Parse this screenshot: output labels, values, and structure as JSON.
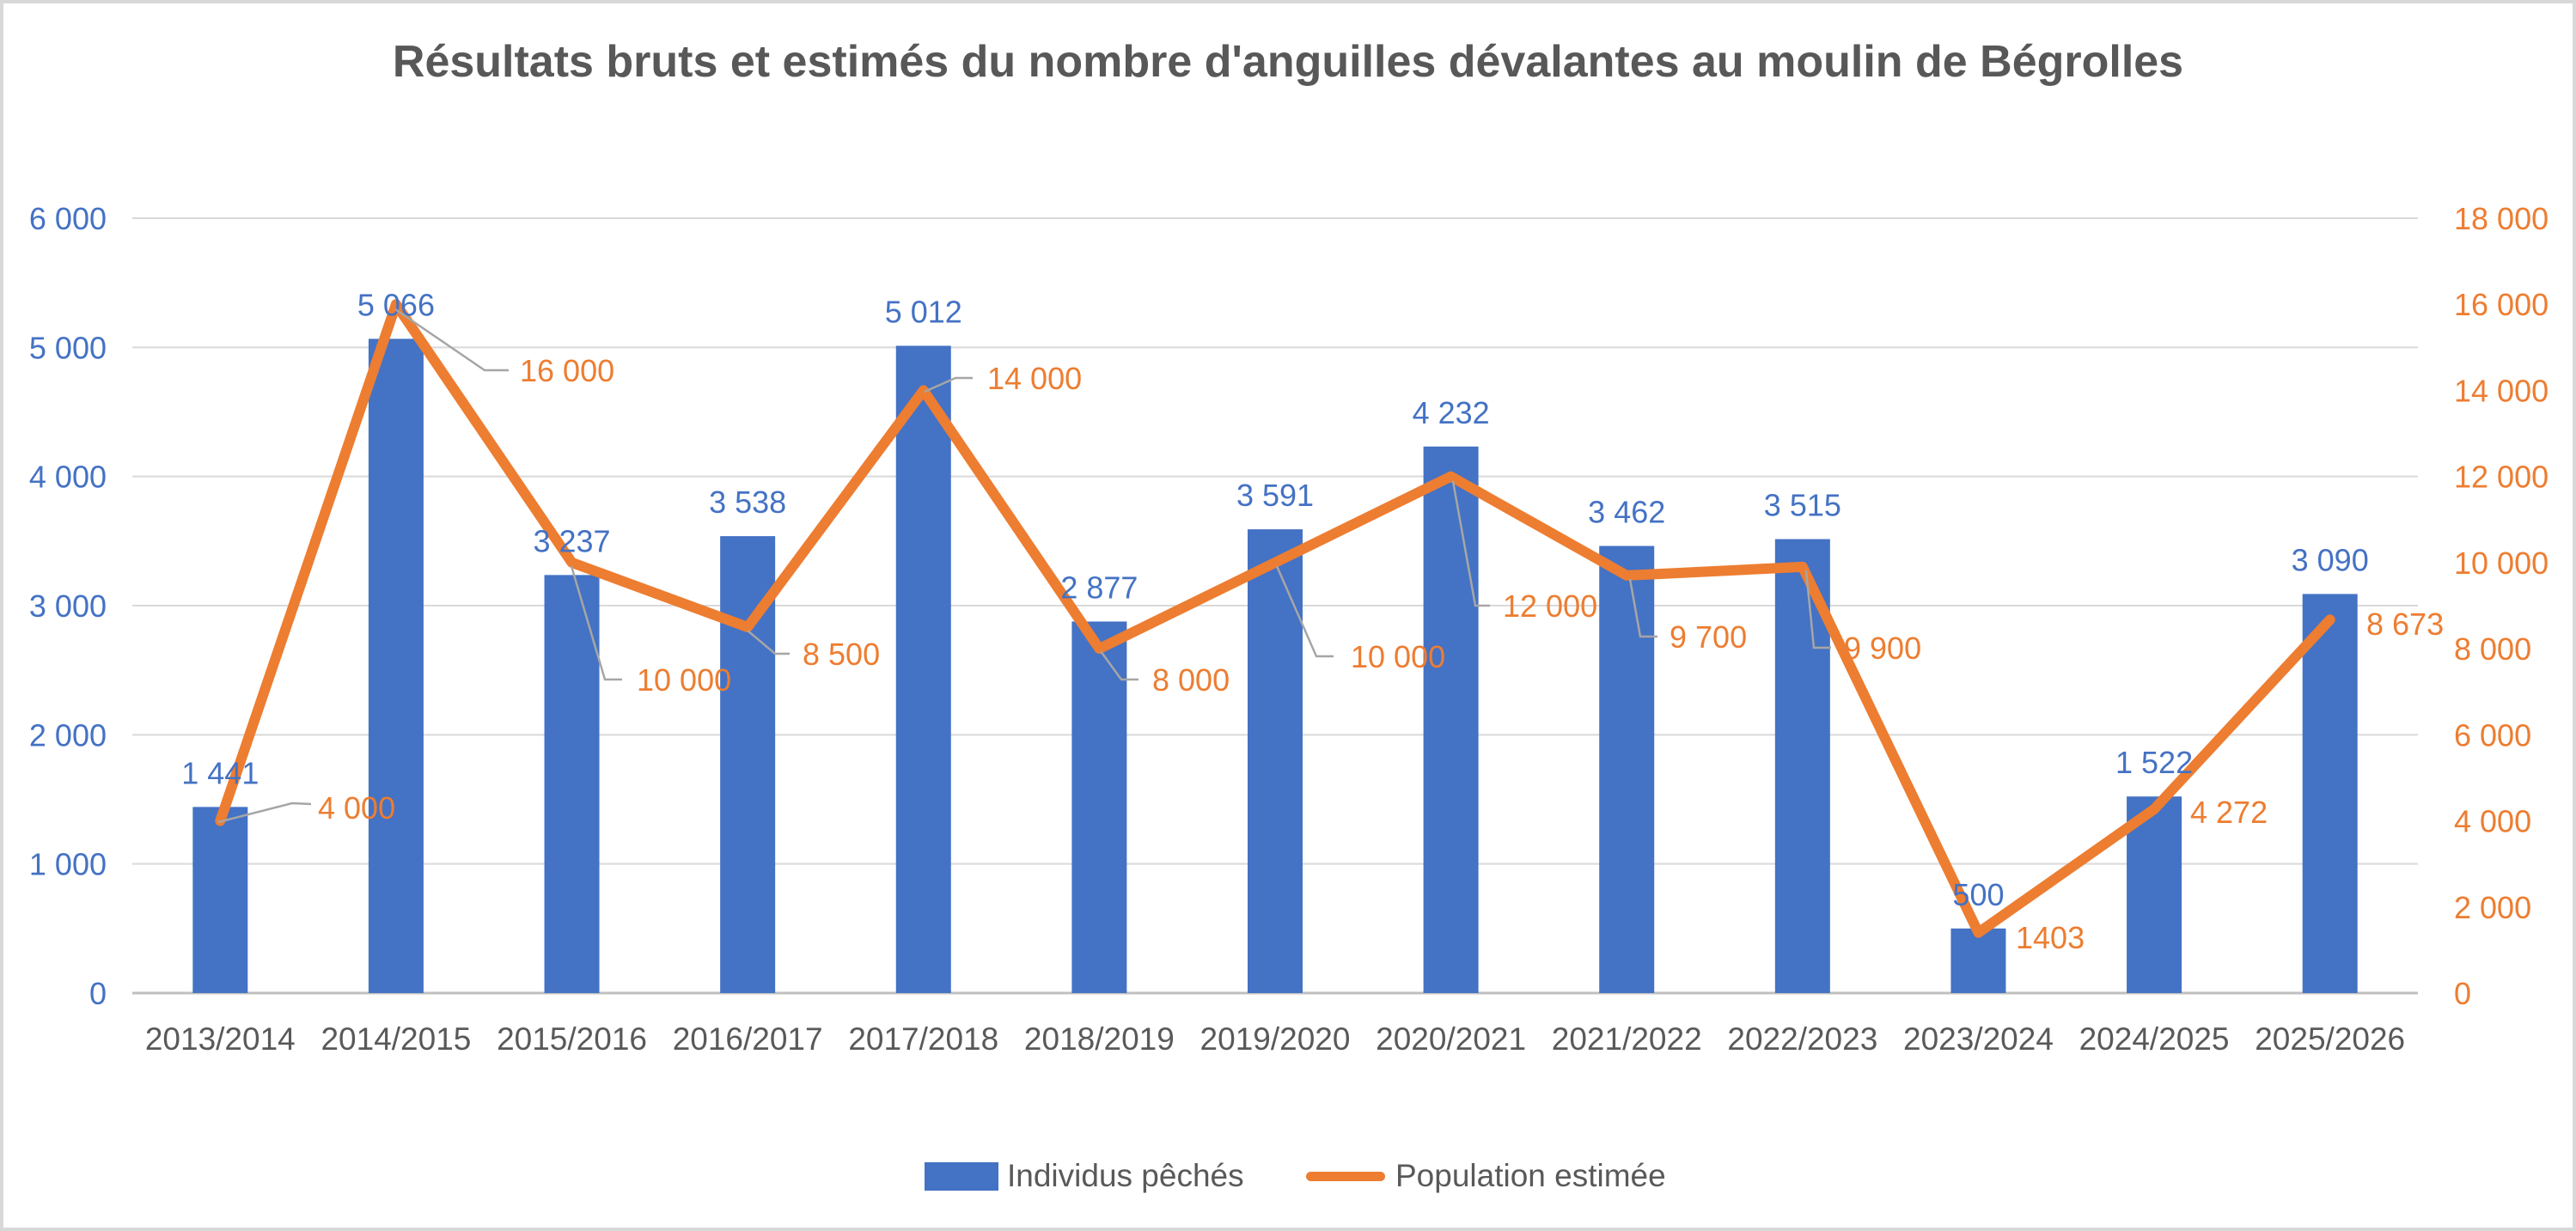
{
  "chart_data": {
    "type": "combo-bar-line",
    "title": "Résultats bruts et estimés du nombre d'anguilles dévalantes au moulin de Bégrolles",
    "categories": [
      "2013/2014",
      "2014/2015",
      "2015/2016",
      "2016/2017",
      "2017/2018",
      "2018/2019",
      "2019/2020",
      "2020/2021",
      "2021/2022",
      "2022/2023",
      "2023/2024",
      "2024/2025",
      "2025/2026"
    ],
    "series": [
      {
        "name": "Individus pêchés",
        "type": "bar",
        "color": "#4472C4",
        "values": [
          1441,
          5066,
          3237,
          3538,
          5012,
          2877,
          3591,
          4232,
          3462,
          3515,
          500,
          1522,
          3090
        ],
        "labels": [
          "1 441",
          "5 066",
          "3 237",
          "3 538",
          "5 012",
          "2 877",
          "3 591",
          "4 232",
          "3 462",
          "3 515",
          "500",
          "1 522",
          "3 090"
        ]
      },
      {
        "name": "Population estimée",
        "type": "line",
        "color": "#ED7D31",
        "values": [
          4000,
          16000,
          10000,
          8500,
          14000,
          8000,
          10000,
          12000,
          9700,
          9900,
          1403,
          4272,
          8673
        ],
        "labels": [
          "4 000",
          "16 000",
          "10 000",
          "8 500",
          "14 000",
          "8 000",
          "10 000",
          "12 000",
          "9 700",
          "9 900",
          "1403",
          "4 272",
          "8 673"
        ]
      }
    ],
    "axes": {
      "left": {
        "min": 0,
        "max": 6000,
        "step": 1000,
        "color": "#4472C4",
        "tick_labels": [
          "0",
          "1 000",
          "2 000",
          "3 000",
          "4 000",
          "5 000",
          "6 000"
        ]
      },
      "right": {
        "min": 0,
        "max": 18000,
        "step": 2000,
        "color": "#ED7D31",
        "tick_labels": [
          "0",
          "2 000",
          "4 000",
          "6 000",
          "8 000",
          "10 000",
          "12 000",
          "14 000",
          "16 000",
          "18 000"
        ]
      },
      "category_color": "#595959"
    },
    "grid": true,
    "gridline_color": "#D9D9D9",
    "baseline_color": "#BFBFBF",
    "leader_line_color": "#A6A6A6",
    "legend_position": "bottom"
  }
}
